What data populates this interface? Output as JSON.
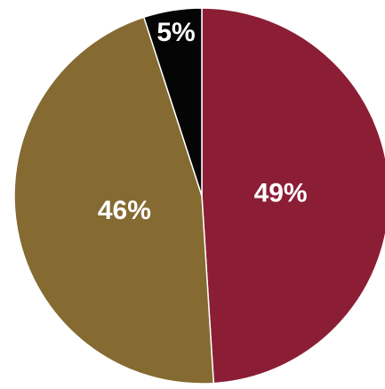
{
  "chart_data": {
    "type": "pie",
    "title": "",
    "start_angle_deg": 0,
    "direction": "clockwise",
    "slices": [
      {
        "value": 49,
        "label": "49%",
        "color": "#8b1e35"
      },
      {
        "value": 46,
        "label": "46%",
        "color": "#856a31"
      },
      {
        "value": 5,
        "label": "5%",
        "color": "#050505"
      }
    ]
  }
}
